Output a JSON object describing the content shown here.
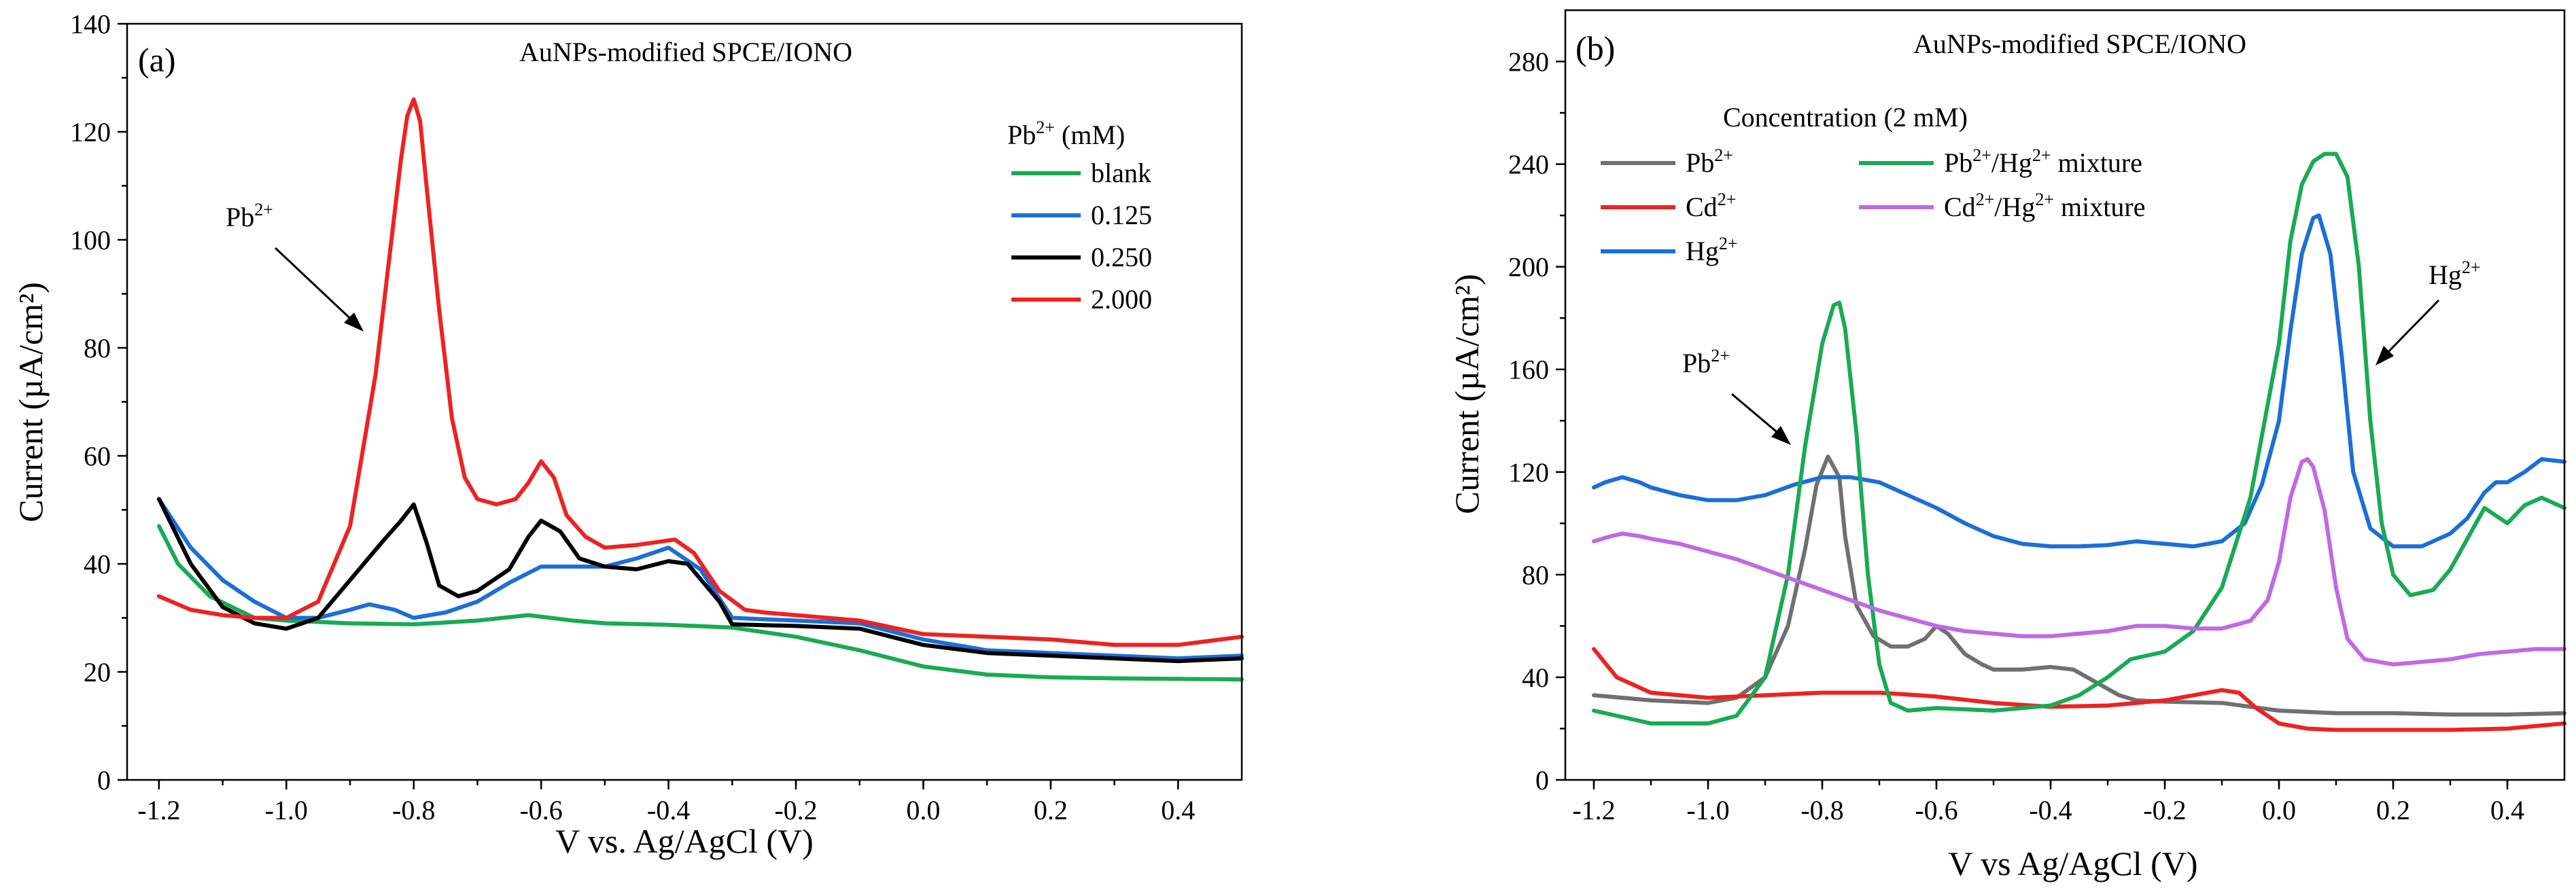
{
  "colors": {
    "green": "#1aaa55",
    "blue": "#1b6fd6",
    "black": "#000000",
    "red": "#ee2222",
    "gray": "#707070",
    "purple": "#c06ae0"
  },
  "chart_data": [
    {
      "type": "line",
      "panel_label": "(a)",
      "title": "AuNPs-modified SPCE/IONO",
      "xlabel": "V vs. Ag/AgCl (V)",
      "ylabel": "Current (µA/cm²)",
      "xlim": [
        -1.25,
        0.5
      ],
      "ylim": [
        0,
        140
      ],
      "xticks": [
        -1.2,
        -1.0,
        -0.8,
        -0.6,
        -0.4,
        -0.2,
        0.0,
        0.2,
        0.4
      ],
      "xtick_labels": [
        "-1.2",
        "-1.0",
        "-0.8",
        "-0.6",
        "-0.4",
        "-0.2",
        "0.0",
        "0.2",
        "0.4"
      ],
      "yticks": [
        0,
        20,
        40,
        60,
        80,
        100,
        120,
        140
      ],
      "ytick_labels": [
        "0",
        "20",
        "40",
        "60",
        "80",
        "100",
        "120",
        "140"
      ],
      "legend": {
        "title": "Pb²⁺ (mM)",
        "title_base": "Pb",
        "title_sup": "2+",
        "title_suffix": " (mM)",
        "placement": "top-right"
      },
      "annotation": {
        "base": "Pb",
        "sup": "2+",
        "x": -0.8,
        "y": 115
      },
      "series": [
        {
          "name": "blank",
          "color": "green",
          "x": [
            -1.2,
            -1.17,
            -1.12,
            -1.05,
            -1.0,
            -0.9,
            -0.8,
            -0.7,
            -0.62,
            -0.55,
            -0.5,
            -0.4,
            -0.3,
            -0.2,
            -0.1,
            0.0,
            0.1,
            0.2,
            0.3,
            0.4,
            0.5
          ],
          "y": [
            47,
            40,
            34,
            30,
            29.5,
            29,
            28.8,
            29.5,
            30.5,
            29.5,
            29,
            28.7,
            28.2,
            26.5,
            24,
            21,
            19.5,
            19,
            18.8,
            18.7,
            18.6
          ]
        },
        {
          "name": "0.125",
          "color": "blue",
          "x": [
            -1.2,
            -1.15,
            -1.1,
            -1.05,
            -1.0,
            -0.95,
            -0.9,
            -0.87,
            -0.83,
            -0.8,
            -0.75,
            -0.7,
            -0.65,
            -0.6,
            -0.5,
            -0.45,
            -0.4,
            -0.35,
            -0.3,
            -0.2,
            -0.1,
            0.0,
            0.1,
            0.2,
            0.3,
            0.4,
            0.5
          ],
          "y": [
            52,
            43,
            37,
            33,
            30,
            30,
            31.5,
            32.5,
            31.5,
            30,
            31,
            33,
            36.5,
            39.5,
            39.5,
            41,
            43,
            39,
            30,
            29.5,
            29,
            26,
            24,
            23.5,
            23,
            22.5,
            23
          ]
        },
        {
          "name": "0.250",
          "color": "black",
          "x": [
            -1.2,
            -1.15,
            -1.1,
            -1.05,
            -1.0,
            -0.95,
            -0.9,
            -0.85,
            -0.82,
            -0.8,
            -0.78,
            -0.76,
            -0.73,
            -0.7,
            -0.65,
            -0.62,
            -0.6,
            -0.57,
            -0.54,
            -0.5,
            -0.45,
            -0.4,
            -0.37,
            -0.32,
            -0.3,
            -0.2,
            -0.1,
            0.0,
            0.1,
            0.2,
            0.3,
            0.4,
            0.5
          ],
          "y": [
            52,
            40,
            32,
            29,
            28,
            30,
            37,
            44,
            48,
            51,
            44,
            36,
            34,
            35,
            39,
            45,
            48,
            46,
            41,
            39.5,
            39,
            40.5,
            40,
            33,
            28.8,
            28.5,
            28,
            25,
            23.5,
            23,
            22.5,
            22,
            22.5
          ]
        },
        {
          "name": "2.000",
          "color": "red",
          "x": [
            -1.2,
            -1.15,
            -1.1,
            -1.05,
            -1.0,
            -0.95,
            -0.9,
            -0.86,
            -0.84,
            -0.82,
            -0.81,
            -0.8,
            -0.79,
            -0.78,
            -0.76,
            -0.74,
            -0.72,
            -0.7,
            -0.67,
            -0.64,
            -0.62,
            -0.6,
            -0.58,
            -0.56,
            -0.53,
            -0.5,
            -0.45,
            -0.42,
            -0.39,
            -0.36,
            -0.32,
            -0.28,
            -0.25,
            -0.2,
            -0.1,
            0.0,
            0.1,
            0.2,
            0.3,
            0.4,
            0.5
          ],
          "y": [
            34,
            31.5,
            30.5,
            30,
            30,
            33,
            47,
            75,
            95,
            115,
            123,
            126,
            122,
            110,
            87,
            67,
            56,
            52,
            51,
            52,
            55,
            59,
            56,
            49,
            45,
            43,
            43.5,
            44,
            44.5,
            42,
            35,
            31.5,
            31,
            30.5,
            29.5,
            27,
            26.5,
            26,
            25,
            25,
            26.5
          ]
        }
      ]
    },
    {
      "type": "line",
      "panel_label": "(b)",
      "title": "AuNPs-modified SPCE/IONO",
      "xlabel": "V vs Ag/AgCl (V)",
      "ylabel": "Current (µA/cm²)",
      "xlim": [
        -1.25,
        0.5
      ],
      "ylim": [
        0,
        300
      ],
      "xticks": [
        -1.2,
        -1.0,
        -0.8,
        -0.6,
        -0.4,
        -0.2,
        0.0,
        0.2,
        0.4
      ],
      "xtick_labels": [
        "-1.2",
        "-1.0",
        "-0.8",
        "-0.6",
        "-0.4",
        "-0.2",
        "0.0",
        "0.2",
        "0.4"
      ],
      "yticks": [
        0,
        40,
        80,
        120,
        160,
        200,
        240,
        280
      ],
      "ytick_labels": [
        "0",
        "40",
        "80",
        "120",
        "160",
        "200",
        "240",
        "280"
      ],
      "legend": {
        "title": "Concentration (2 mM)",
        "placement": "top-left"
      },
      "annotations": [
        {
          "base": "Pb",
          "sup": "2+",
          "x": -0.8,
          "y": 125
        },
        {
          "base": "Hg",
          "sup": "2+",
          "x": 0.18,
          "y": 160
        }
      ],
      "series": [
        {
          "name": "Pb²⁺",
          "base": "Pb",
          "sup": "2+",
          "suffix": "",
          "color": "gray",
          "x": [
            -1.2,
            -1.1,
            -1.0,
            -0.95,
            -0.9,
            -0.86,
            -0.83,
            -0.81,
            -0.79,
            -0.77,
            -0.76,
            -0.74,
            -0.71,
            -0.68,
            -0.65,
            -0.62,
            -0.6,
            -0.58,
            -0.55,
            -0.52,
            -0.5,
            -0.45,
            -0.4,
            -0.36,
            -0.32,
            -0.28,
            -0.25,
            -0.2,
            -0.1,
            0.0,
            0.1,
            0.2,
            0.3,
            0.4,
            0.5
          ],
          "y": [
            33,
            31,
            30,
            32,
            40,
            60,
            90,
            115,
            126,
            118,
            95,
            68,
            56,
            52,
            52,
            55,
            60,
            57,
            49,
            45,
            43,
            43,
            44,
            43,
            38,
            33,
            31,
            30.5,
            30,
            27,
            26,
            26,
            25.5,
            25.5,
            26
          ]
        },
        {
          "name": "Cd²⁺",
          "base": "Cd",
          "sup": "2+",
          "suffix": "",
          "color": "red",
          "x": [
            -1.2,
            -1.16,
            -1.1,
            -1.0,
            -0.9,
            -0.8,
            -0.7,
            -0.6,
            -0.5,
            -0.4,
            -0.3,
            -0.2,
            -0.15,
            -0.1,
            -0.07,
            -0.04,
            0.0,
            0.05,
            0.1,
            0.2,
            0.3,
            0.4,
            0.5
          ],
          "y": [
            51,
            40,
            34,
            32,
            33,
            34,
            34,
            32.5,
            30,
            28.5,
            29,
            31,
            33,
            35,
            34,
            28,
            22,
            20,
            19.5,
            19.5,
            19.5,
            20,
            22
          ]
        },
        {
          "name": "Hg²⁺",
          "base": "Hg",
          "sup": "2+",
          "suffix": "",
          "color": "blue",
          "x": [
            -1.2,
            -1.18,
            -1.15,
            -1.12,
            -1.1,
            -1.05,
            -1.0,
            -0.95,
            -0.9,
            -0.85,
            -0.8,
            -0.75,
            -0.7,
            -0.65,
            -0.6,
            -0.55,
            -0.5,
            -0.45,
            -0.4,
            -0.35,
            -0.3,
            -0.25,
            -0.2,
            -0.15,
            -0.1,
            -0.06,
            -0.03,
            0.0,
            0.02,
            0.04,
            0.06,
            0.07,
            0.09,
            0.11,
            0.13,
            0.16,
            0.2,
            0.25,
            0.3,
            0.33,
            0.36,
            0.38,
            0.4,
            0.43,
            0.46,
            0.5
          ],
          "y": [
            114,
            116,
            118,
            116,
            114,
            111,
            109,
            109,
            111,
            115,
            118,
            118,
            116,
            111,
            106,
            100,
            95,
            92,
            91,
            91,
            91.5,
            93,
            92,
            91,
            93,
            100,
            115,
            140,
            175,
            205,
            219,
            220,
            205,
            165,
            120,
            98,
            91,
            91,
            96,
            102,
            112,
            116,
            116,
            120,
            125,
            124
          ]
        },
        {
          "name": "Pb²⁺/Hg²⁺ mixture",
          "base": "Pb",
          "sup": "2+",
          "suffix": "/Hg²⁺ mixture",
          "mid": "/Hg",
          "sup2": "2+",
          "tail": " mixture",
          "color": "green",
          "x": [
            -1.2,
            -1.1,
            -1.0,
            -0.95,
            -0.9,
            -0.86,
            -0.83,
            -0.8,
            -0.78,
            -0.77,
            -0.76,
            -0.74,
            -0.72,
            -0.7,
            -0.68,
            -0.65,
            -0.6,
            -0.5,
            -0.4,
            -0.35,
            -0.3,
            -0.26,
            -0.24,
            -0.2,
            -0.15,
            -0.1,
            -0.05,
            0.0,
            0.02,
            0.04,
            0.06,
            0.08,
            0.1,
            0.12,
            0.14,
            0.16,
            0.18,
            0.2,
            0.23,
            0.27,
            0.3,
            0.33,
            0.36,
            0.38,
            0.4,
            0.43,
            0.46,
            0.5
          ],
          "y": [
            27,
            22,
            22,
            25,
            40,
            80,
            130,
            170,
            185,
            186,
            176,
            135,
            80,
            45,
            30,
            27,
            28,
            27,
            29,
            33,
            40,
            47,
            48,
            50,
            58,
            75,
            110,
            170,
            210,
            232,
            241,
            244,
            244,
            235,
            200,
            140,
            100,
            80,
            72,
            74,
            82,
            94,
            106,
            103,
            100,
            107,
            110,
            106
          ]
        },
        {
          "name": "Cd²⁺/Hg²⁺ mixture",
          "base": "Cd",
          "sup": "2+",
          "suffix": "/Hg²⁺ mixture",
          "mid": "/Hg",
          "sup2": "2+",
          "tail": " mixture",
          "color": "purple",
          "x": [
            -1.2,
            -1.17,
            -1.15,
            -1.12,
            -1.1,
            -1.05,
            -1.0,
            -0.95,
            -0.9,
            -0.85,
            -0.8,
            -0.75,
            -0.7,
            -0.65,
            -0.6,
            -0.55,
            -0.5,
            -0.45,
            -0.4,
            -0.35,
            -0.3,
            -0.25,
            -0.2,
            -0.15,
            -0.1,
            -0.05,
            -0.02,
            0.0,
            0.02,
            0.04,
            0.05,
            0.06,
            0.08,
            0.1,
            0.12,
            0.15,
            0.2,
            0.25,
            0.3,
            0.35,
            0.4,
            0.45,
            0.5
          ],
          "y": [
            93,
            95,
            96,
            95,
            94,
            92,
            89,
            86,
            82,
            78,
            74,
            70,
            66,
            63,
            60,
            58,
            57,
            56,
            56,
            57,
            58,
            60,
            60,
            59,
            59,
            62,
            70,
            85,
            110,
            124,
            125,
            122,
            105,
            75,
            55,
            47,
            45,
            46,
            47,
            49,
            50,
            51,
            51
          ]
        }
      ]
    }
  ]
}
